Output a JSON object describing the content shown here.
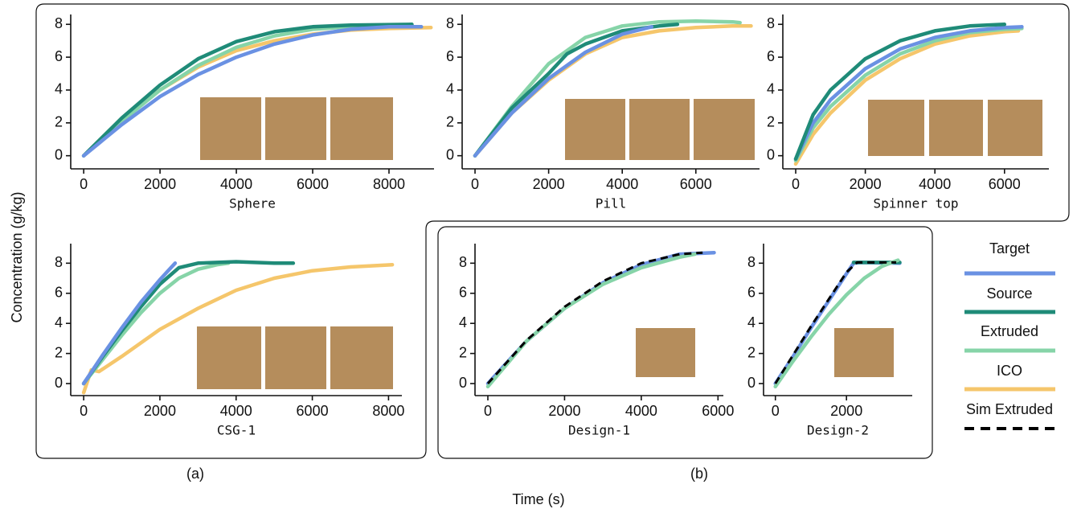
{
  "ylabel": "Concentration (g/kg)",
  "xlabel": "Time (s)",
  "groups": [
    "(a)",
    "(b)"
  ],
  "legend": [
    {
      "name": "Target",
      "color": "#6a91e3",
      "dash": false
    },
    {
      "name": "Source",
      "color": "#1f8b78",
      "dash": false
    },
    {
      "name": "Extruded",
      "color": "#86d4a8",
      "dash": false
    },
    {
      "name": "ICO",
      "color": "#f5c66b",
      "dash": false
    },
    {
      "name": "Sim Extruded",
      "color": "#000000",
      "dash": true
    }
  ],
  "chart_data": [
    {
      "type": "line",
      "xlabel": "Sphere",
      "xlim": [
        -340,
        9180
      ],
      "xticks": [
        0,
        2000,
        4000,
        6000,
        8000
      ],
      "ylim": [
        -0.8,
        8.6
      ],
      "yticks": [
        0,
        2,
        4,
        6,
        8
      ],
      "series": [
        {
          "color": "#f5c66b",
          "x": [
            0,
            1000,
            2000,
            3000,
            4000,
            5000,
            6000,
            7000,
            8000,
            9100
          ],
          "values": [
            0,
            2.2,
            4.0,
            5.4,
            6.4,
            7.0,
            7.4,
            7.65,
            7.75,
            7.8
          ]
        },
        {
          "color": "#86d4a8",
          "x": [
            0,
            1000,
            2000,
            3000,
            4000,
            5000,
            6000,
            7000,
            8500
          ],
          "values": [
            0,
            2.1,
            4.0,
            5.5,
            6.6,
            7.3,
            7.7,
            7.85,
            7.9
          ]
        },
        {
          "color": "#1f8b78",
          "x": [
            0,
            1000,
            2000,
            3000,
            4000,
            5000,
            6000,
            7000,
            8600
          ],
          "values": [
            0,
            2.3,
            4.3,
            5.9,
            6.95,
            7.55,
            7.85,
            7.95,
            8.0
          ]
        },
        {
          "color": "#6a91e3",
          "x": [
            0,
            1000,
            2000,
            3000,
            4000,
            5000,
            6000,
            7000,
            8000,
            8850
          ],
          "values": [
            0,
            1.9,
            3.6,
            4.95,
            6.0,
            6.8,
            7.35,
            7.7,
            7.85,
            7.85
          ]
        }
      ]
    },
    {
      "type": "line",
      "xlabel": "Pill",
      "xlim": [
        -350,
        7730
      ],
      "xticks": [
        0,
        2000,
        4000,
        6000
      ],
      "ylim": [
        -0.8,
        8.6
      ],
      "yticks": [
        0,
        2,
        4,
        6,
        8
      ],
      "series": [
        {
          "color": "#f5c66b",
          "x": [
            0,
            1000,
            2000,
            3000,
            4000,
            5000,
            6000,
            7000,
            7500
          ],
          "values": [
            0,
            2.6,
            4.6,
            6.2,
            7.2,
            7.6,
            7.8,
            7.9,
            7.9
          ]
        },
        {
          "color": "#86d4a8",
          "x": [
            0,
            1000,
            2000,
            3000,
            4000,
            5000,
            6000,
            7000,
            7200
          ],
          "values": [
            0,
            3.0,
            5.6,
            7.2,
            7.9,
            8.15,
            8.2,
            8.15,
            8.1
          ]
        },
        {
          "color": "#1f8b78",
          "x": [
            0,
            1000,
            2000,
            2500,
            3000,
            4000,
            5000,
            5500
          ],
          "values": [
            0,
            2.9,
            5.0,
            6.2,
            6.8,
            7.6,
            7.9,
            8.0
          ]
        },
        {
          "color": "#6a91e3",
          "x": [
            0,
            1000,
            2000,
            3000,
            4000,
            4800
          ],
          "values": [
            0,
            2.6,
            4.7,
            6.3,
            7.4,
            7.85
          ]
        }
      ]
    },
    {
      "type": "line",
      "xlabel": "Spinner top",
      "xlim": [
        -370,
        7275
      ],
      "xticks": [
        0,
        2000,
        4000,
        6000
      ],
      "ylim": [
        -0.8,
        8.6
      ],
      "yticks": [
        0,
        2,
        4,
        6,
        8
      ],
      "series": [
        {
          "color": "#f5c66b",
          "x": [
            0,
            500,
            1000,
            2000,
            3000,
            4000,
            5000,
            6000,
            6400
          ],
          "values": [
            -0.5,
            1.3,
            2.6,
            4.6,
            5.9,
            6.8,
            7.3,
            7.55,
            7.6
          ]
        },
        {
          "color": "#86d4a8",
          "x": [
            0,
            500,
            1000,
            2000,
            3000,
            4000,
            5000,
            6000,
            6500
          ],
          "values": [
            -0.3,
            1.7,
            3.0,
            4.9,
            6.2,
            7.0,
            7.5,
            7.7,
            7.75
          ]
        },
        {
          "color": "#6a91e3",
          "x": [
            0,
            500,
            1000,
            2000,
            3000,
            4000,
            5000,
            6000,
            6500
          ],
          "values": [
            -0.2,
            2.0,
            3.4,
            5.3,
            6.5,
            7.2,
            7.6,
            7.8,
            7.85
          ]
        },
        {
          "color": "#1f8b78",
          "x": [
            0,
            500,
            1000,
            2000,
            3000,
            4000,
            5000,
            6000
          ],
          "values": [
            -0.2,
            2.5,
            4.0,
            5.9,
            7.0,
            7.6,
            7.9,
            8.0
          ]
        }
      ]
    },
    {
      "type": "line",
      "xlabel": "CSG-1",
      "xlim": [
        -340,
        8350
      ],
      "xticks": [
        0,
        2000,
        4000,
        6000,
        8000
      ],
      "ylim": [
        -0.8,
        9.3
      ],
      "yticks": [
        0,
        2,
        4,
        6,
        8
      ],
      "series": [
        {
          "color": "#f5c66b",
          "x": [
            0,
            200,
            400,
            1000,
            2000,
            3000,
            4000,
            5000,
            6000,
            7000,
            8100
          ],
          "values": [
            -0.6,
            0.9,
            0.8,
            1.8,
            3.6,
            5.0,
            6.2,
            7.0,
            7.5,
            7.75,
            7.9
          ]
        },
        {
          "color": "#86d4a8",
          "x": [
            0,
            500,
            1000,
            1500,
            2000,
            2500,
            3000,
            3500,
            3800
          ],
          "values": [
            0,
            1.6,
            3.2,
            4.7,
            6.0,
            7.0,
            7.6,
            7.9,
            8.0
          ]
        },
        {
          "color": "#1f8b78",
          "x": [
            0,
            500,
            1000,
            1500,
            2000,
            2500,
            3000,
            3500,
            4000,
            5000,
            5500
          ],
          "values": [
            0,
            1.8,
            3.5,
            5.1,
            6.6,
            7.7,
            8.0,
            8.05,
            8.1,
            8.0,
            8.0
          ]
        },
        {
          "color": "#6a91e3",
          "x": [
            0,
            500,
            1000,
            1500,
            2000,
            2400
          ],
          "values": [
            0,
            1.9,
            3.7,
            5.4,
            6.9,
            8.0
          ]
        }
      ]
    },
    {
      "type": "line",
      "xlabel": "Design-1",
      "xlim": [
        -335,
        6140
      ],
      "xticks": [
        0,
        2000,
        4000,
        6000
      ],
      "ylim": [
        -0.8,
        9.3
      ],
      "yticks": [
        0,
        2,
        4,
        6,
        8
      ],
      "series": [
        {
          "color": "#6a91e3",
          "x": [
            0,
            1000,
            2000,
            3000,
            4000,
            5000,
            5900
          ],
          "values": [
            0,
            2.8,
            5.0,
            6.7,
            7.9,
            8.6,
            8.7
          ]
        },
        {
          "color": "#86d4a8",
          "x": [
            0,
            1000,
            2000,
            3000,
            4000,
            5000,
            5400
          ],
          "values": [
            -0.2,
            2.8,
            5.0,
            6.6,
            7.7,
            8.4,
            8.6
          ]
        },
        {
          "color": "#000000",
          "dash": true,
          "x": [
            0,
            1000,
            2000,
            3000,
            4000,
            5000,
            5600
          ],
          "values": [
            0,
            2.85,
            5.1,
            6.8,
            8.0,
            8.6,
            8.7
          ]
        }
      ]
    },
    {
      "type": "line",
      "xlabel": "Design-2",
      "xlim": [
        -333,
        3850
      ],
      "xticks": [
        0,
        2000
      ],
      "ylim": [
        -0.8,
        9.3
      ],
      "yticks": [
        0,
        2,
        4,
        6,
        8
      ],
      "series": [
        {
          "color": "#6a91e3",
          "x": [
            0,
            500,
            1000,
            1500,
            2000,
            2200,
            2400,
            3500
          ],
          "values": [
            0,
            1.8,
            3.7,
            5.5,
            7.3,
            8.0,
            8.05,
            8.0
          ]
        },
        {
          "color": "#1f8b78",
          "x": [
            2200,
            3500
          ],
          "values": [
            8.05,
            8.05
          ]
        },
        {
          "color": "#86d4a8",
          "x": [
            0,
            500,
            1000,
            1500,
            2000,
            2500,
            3000,
            3450
          ],
          "values": [
            -0.2,
            1.5,
            3.1,
            4.6,
            5.9,
            7.0,
            7.8,
            8.2
          ]
        },
        {
          "color": "#000000",
          "dash": true,
          "x": [
            0,
            500,
            1000,
            1500,
            2000,
            2300,
            3000,
            3400
          ],
          "values": [
            0,
            1.9,
            3.8,
            5.6,
            7.4,
            8.05,
            8.05,
            8.05
          ]
        }
      ]
    }
  ]
}
